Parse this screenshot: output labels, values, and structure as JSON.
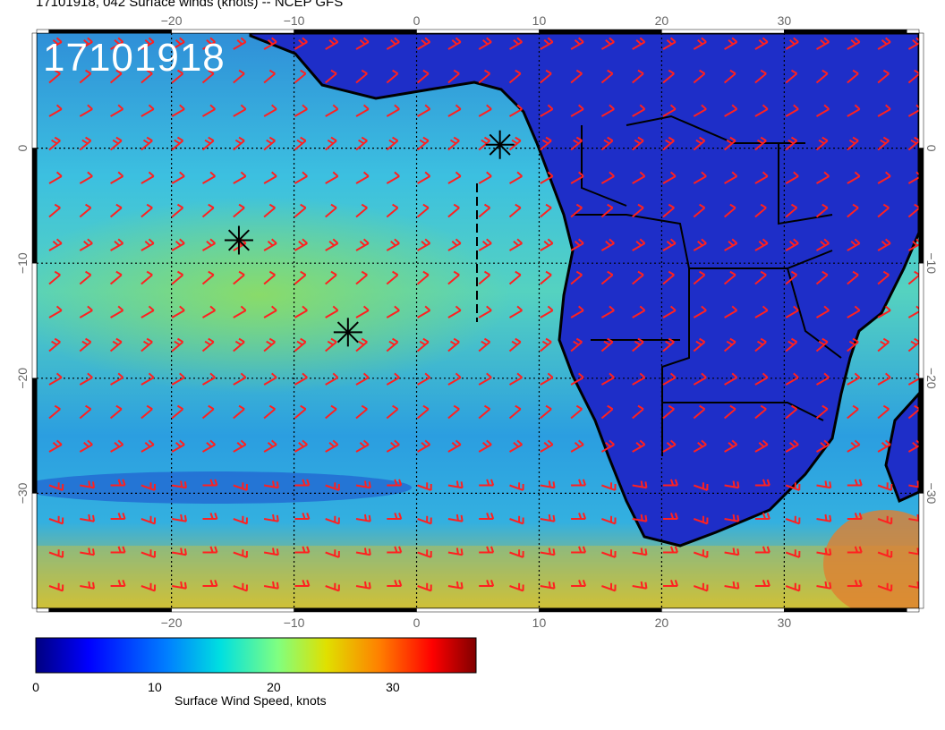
{
  "title": "17101918, 042 Surface winds (knots) -- NCEP GFS",
  "stamp": "17101918",
  "map": {
    "lon_range": [
      -31,
      41
    ],
    "lat_range": [
      -40,
      10
    ],
    "lon_ticks_top": [
      "−20",
      "−10",
      "0",
      "10",
      "20",
      "30"
    ],
    "lon_ticks_bottom": [
      "−20",
      "−10",
      "0",
      "10",
      "20",
      "30"
    ],
    "lat_ticks": [
      "0",
      "−10",
      "−20",
      "−30"
    ],
    "lon_tick_values": [
      -20,
      -10,
      0,
      10,
      20,
      30
    ],
    "lat_tick_values": [
      0,
      -10,
      -20,
      -30
    ]
  },
  "markers": [
    {
      "lon": -14.5,
      "lat": -8.0
    },
    {
      "lon": -5.6,
      "lat": -16.0
    },
    {
      "lon": 6.8,
      "lat": 0.3
    }
  ],
  "colorbar": {
    "title": "Surface Wind Speed, knots",
    "ticks": [
      "0",
      "10",
      "20",
      "30"
    ],
    "tick_values": [
      0,
      10,
      20,
      30
    ],
    "range": [
      0,
      37
    ],
    "colors": [
      "#000080",
      "#0000ff",
      "#0080ff",
      "#00ffff",
      "#80ff80",
      "#ffff00",
      "#ff8000",
      "#ff0000",
      "#800000"
    ]
  },
  "colors": {
    "barb": "#ff2020",
    "land": "#1e2ec8",
    "ocean": "#3aa8e0",
    "coast": "#000000"
  }
}
